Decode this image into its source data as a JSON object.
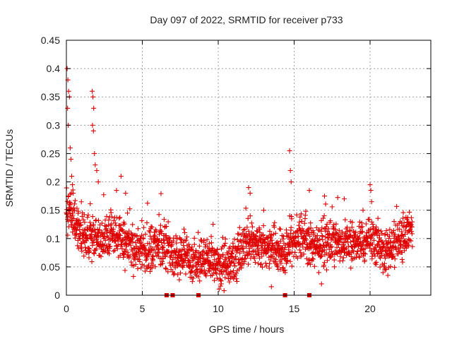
{
  "chart_data": {
    "type": "scatter",
    "title": "Day 097 of 2022, SRMTID for receiver p733",
    "xlabel": "GPS time / hours",
    "ylabel": "SRMTID / TECUs",
    "xlim": [
      0,
      24
    ],
    "ylim": [
      0,
      0.45
    ],
    "xticks": [
      0,
      5,
      10,
      15,
      20
    ],
    "xtick_labels": [
      "0",
      "5",
      "10",
      "15",
      "20"
    ],
    "yticks": [
      0,
      0.05,
      0.1,
      0.15,
      0.2,
      0.25,
      0.3,
      0.35,
      0.4,
      0.45
    ],
    "ytick_labels": [
      "0",
      "0.05",
      "0.1",
      "0.15",
      "0.2",
      "0.25",
      "0.3",
      "0.35",
      "0.4",
      "0.45"
    ],
    "grid": true,
    "marker": "+",
    "series": [
      {
        "name": "SRMTID p733",
        "color": "#e00000",
        "baseline_profile": {
          "x": [
            0,
            0.5,
            1,
            1.5,
            2,
            2.5,
            3,
            3.5,
            4,
            4.5,
            5,
            5.5,
            6,
            6.5,
            7,
            7.5,
            8,
            8.5,
            9,
            9.5,
            10,
            10.5,
            11,
            11.5,
            12,
            12.5,
            13,
            13.5,
            14,
            14.5,
            15,
            15.5,
            16,
            16.5,
            17,
            17.5,
            18,
            18.5,
            19,
            19.5,
            20,
            20.5,
            21,
            21.5,
            22,
            22.5,
            22.8
          ],
          "y": [
            0.16,
            0.13,
            0.11,
            0.1,
            0.1,
            0.1,
            0.11,
            0.1,
            0.09,
            0.085,
            0.08,
            0.08,
            0.085,
            0.09,
            0.075,
            0.07,
            0.07,
            0.065,
            0.065,
            0.06,
            0.05,
            0.05,
            0.06,
            0.075,
            0.09,
            0.09,
            0.085,
            0.08,
            0.075,
            0.08,
            0.095,
            0.1,
            0.09,
            0.085,
            0.09,
            0.095,
            0.09,
            0.09,
            0.09,
            0.095,
            0.1,
            0.085,
            0.08,
            0.085,
            0.095,
            0.11,
            0.12
          ]
        },
        "peaks": [
          {
            "x": 0.05,
            "y": 0.4
          },
          {
            "x": 0.1,
            "y": 0.38
          },
          {
            "x": 0.15,
            "y": 0.36
          },
          {
            "x": 0.2,
            "y": 0.35
          },
          {
            "x": 0.08,
            "y": 0.33
          },
          {
            "x": 0.12,
            "y": 0.3
          },
          {
            "x": 0.25,
            "y": 0.26
          },
          {
            "x": 0.3,
            "y": 0.24
          },
          {
            "x": 0.35,
            "y": 0.21
          },
          {
            "x": 0.4,
            "y": 0.195
          },
          {
            "x": 0.45,
            "y": 0.18
          },
          {
            "x": 1.7,
            "y": 0.36
          },
          {
            "x": 1.75,
            "y": 0.35
          },
          {
            "x": 1.8,
            "y": 0.33
          },
          {
            "x": 1.72,
            "y": 0.3
          },
          {
            "x": 1.78,
            "y": 0.29
          },
          {
            "x": 1.85,
            "y": 0.25
          },
          {
            "x": 1.9,
            "y": 0.23
          },
          {
            "x": 2.0,
            "y": 0.22
          },
          {
            "x": 2.1,
            "y": 0.2
          },
          {
            "x": 3.6,
            "y": 0.21
          },
          {
            "x": 3.3,
            "y": 0.185
          },
          {
            "x": 3.9,
            "y": 0.18
          },
          {
            "x": 12.0,
            "y": 0.19
          },
          {
            "x": 12.1,
            "y": 0.18
          },
          {
            "x": 14.7,
            "y": 0.255
          },
          {
            "x": 14.75,
            "y": 0.22
          },
          {
            "x": 14.8,
            "y": 0.2
          },
          {
            "x": 16.0,
            "y": 0.185
          },
          {
            "x": 17.0,
            "y": 0.175
          },
          {
            "x": 18.3,
            "y": 0.17
          },
          {
            "x": 20.0,
            "y": 0.195
          },
          {
            "x": 20.05,
            "y": 0.185
          },
          {
            "x": 20.1,
            "y": 0.165
          },
          {
            "x": 13.5,
            "y": 0.015
          },
          {
            "x": 10.2,
            "y": 0.02
          },
          {
            "x": 16.8,
            "y": 0.02
          }
        ],
        "zero_markers_x": [
          6.6,
          7.0,
          8.7,
          14.4,
          16.0
        ]
      }
    ]
  }
}
